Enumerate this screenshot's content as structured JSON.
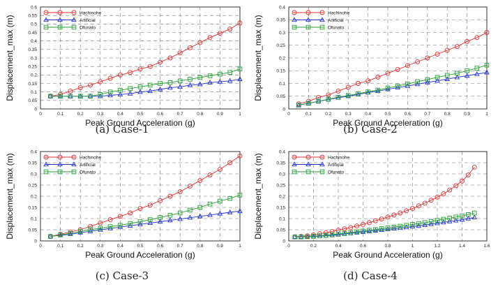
{
  "chart_data": [
    {
      "type": "line",
      "caption": "(a) Case-1",
      "xlabel": "Peak Ground Acceleration (g)",
      "ylabel": "Displacement_max (m)",
      "xlim": [
        0,
        1
      ],
      "ylim": [
        0,
        0.6
      ],
      "xticks": [
        0,
        0.1,
        0.2,
        0.3,
        0.4,
        0.5,
        0.6,
        0.7,
        0.8,
        0.9,
        1
      ],
      "yticks": [
        0,
        0.05,
        0.1,
        0.15,
        0.2,
        0.25,
        0.3,
        0.35,
        0.4,
        0.45,
        0.5,
        0.55,
        0.6
      ],
      "xtick_labels": [
        "0",
        "0.1",
        "0.2",
        "0.3",
        "0.4",
        "0.5",
        "0.6",
        "0.7",
        "0.8",
        "0.9",
        "1"
      ],
      "ytick_labels": [
        "0",
        "0.05",
        "0.1",
        "0.15",
        "0.2",
        "0.25",
        "0.3",
        "0.35",
        "0.4",
        "0.45",
        "0.5",
        "0.55",
        "0.6"
      ],
      "grid": "dashed",
      "legend": "top-left",
      "x": [
        0.05,
        0.1,
        0.15,
        0.2,
        0.25,
        0.3,
        0.35,
        0.4,
        0.45,
        0.5,
        0.55,
        0.6,
        0.65,
        0.7,
        0.75,
        0.8,
        0.85,
        0.9,
        0.95,
        1.0
      ],
      "series": [
        {
          "name": "Hachinohe",
          "marker": "circle",
          "color": "#e03030",
          "values": [
            0.075,
            0.085,
            0.105,
            0.125,
            0.14,
            0.16,
            0.18,
            0.2,
            0.215,
            0.235,
            0.25,
            0.275,
            0.3,
            0.33,
            0.36,
            0.39,
            0.42,
            0.445,
            0.47,
            0.505
          ]
        },
        {
          "name": "Artificial",
          "marker": "triangle",
          "color": "#2030d0",
          "values": [
            0.075,
            0.075,
            0.075,
            0.075,
            0.075,
            0.075,
            0.08,
            0.085,
            0.09,
            0.1,
            0.105,
            0.115,
            0.125,
            0.13,
            0.14,
            0.145,
            0.155,
            0.16,
            0.165,
            0.175
          ]
        },
        {
          "name": "Ofunato",
          "marker": "square",
          "color": "#20a030",
          "values": [
            0.075,
            0.075,
            0.075,
            0.075,
            0.075,
            0.085,
            0.1,
            0.11,
            0.12,
            0.13,
            0.14,
            0.15,
            0.155,
            0.165,
            0.175,
            0.185,
            0.195,
            0.205,
            0.215,
            0.235
          ]
        }
      ]
    },
    {
      "type": "line",
      "caption": "(b) Case-2",
      "xlabel": "Peak Ground Acceleration (g)",
      "ylabel": "Displacement_max (m)",
      "xlim": [
        0,
        1
      ],
      "ylim": [
        0,
        0.4
      ],
      "xticks": [
        0,
        0.1,
        0.2,
        0.3,
        0.4,
        0.5,
        0.6,
        0.7,
        0.8,
        0.9,
        1
      ],
      "yticks": [
        0,
        0.05,
        0.1,
        0.15,
        0.2,
        0.25,
        0.3,
        0.35,
        0.4
      ],
      "xtick_labels": [
        "0",
        "0.1",
        "0.2",
        "0.3",
        "0.4",
        "0.5",
        "0.6",
        "0.7",
        "0.8",
        "0.9",
        "1"
      ],
      "ytick_labels": [
        "0",
        "0.05",
        "0.1",
        "0.15",
        "0.2",
        "0.25",
        "0.3",
        "0.35",
        "0.4"
      ],
      "grid": "dashed",
      "legend": "top-left",
      "x": [
        0.05,
        0.1,
        0.15,
        0.2,
        0.25,
        0.3,
        0.35,
        0.4,
        0.45,
        0.5,
        0.55,
        0.6,
        0.65,
        0.7,
        0.75,
        0.8,
        0.85,
        0.9,
        0.95,
        1.0
      ],
      "series": [
        {
          "name": "Hachinohe",
          "marker": "circle",
          "color": "#e03030",
          "values": [
            0.02,
            0.03,
            0.045,
            0.055,
            0.07,
            0.085,
            0.1,
            0.11,
            0.125,
            0.14,
            0.155,
            0.17,
            0.185,
            0.2,
            0.215,
            0.23,
            0.245,
            0.265,
            0.28,
            0.3
          ]
        },
        {
          "name": "Artificial",
          "marker": "triangle",
          "color": "#2030d0",
          "values": [
            0.015,
            0.022,
            0.03,
            0.037,
            0.044,
            0.05,
            0.057,
            0.064,
            0.07,
            0.077,
            0.084,
            0.09,
            0.097,
            0.104,
            0.11,
            0.117,
            0.124,
            0.13,
            0.137,
            0.143
          ]
        },
        {
          "name": "Ofunato",
          "marker": "square",
          "color": "#20a030",
          "values": [
            0.015,
            0.022,
            0.03,
            0.038,
            0.046,
            0.053,
            0.06,
            0.067,
            0.074,
            0.082,
            0.09,
            0.098,
            0.107,
            0.115,
            0.124,
            0.132,
            0.14,
            0.15,
            0.16,
            0.172
          ]
        }
      ]
    },
    {
      "type": "line",
      "caption": "(c) Case-3",
      "xlabel": "Peak Ground Acceleration (g)",
      "ylabel": "Displacement_max (m)",
      "xlim": [
        0,
        1
      ],
      "ylim": [
        0,
        0.4
      ],
      "xticks": [
        0,
        0.1,
        0.2,
        0.3,
        0.4,
        0.5,
        0.6,
        0.7,
        0.8,
        0.9,
        1
      ],
      "yticks": [
        0,
        0.05,
        0.1,
        0.15,
        0.2,
        0.25,
        0.3,
        0.35,
        0.4
      ],
      "xtick_labels": [
        "0",
        "0.1",
        "0.2",
        "0.3",
        "0.4",
        "0.5",
        "0.6",
        "0.7",
        "0.8",
        "0.9",
        "1"
      ],
      "ytick_labels": [
        "0",
        "0.05",
        "0.1",
        "0.15",
        "0.2",
        "0.25",
        "0.3",
        "0.35",
        "0.4"
      ],
      "grid": "dashed",
      "legend": "top-left",
      "x": [
        0.05,
        0.1,
        0.15,
        0.2,
        0.25,
        0.3,
        0.35,
        0.4,
        0.45,
        0.5,
        0.55,
        0.6,
        0.65,
        0.7,
        0.75,
        0.8,
        0.85,
        0.9,
        0.95,
        1.0
      ],
      "series": [
        {
          "name": "Hachinohe",
          "marker": "circle",
          "color": "#e03030",
          "values": [
            0.02,
            0.03,
            0.04,
            0.05,
            0.065,
            0.08,
            0.095,
            0.11,
            0.125,
            0.145,
            0.16,
            0.18,
            0.2,
            0.22,
            0.245,
            0.27,
            0.295,
            0.32,
            0.35,
            0.38
          ]
        },
        {
          "name": "Artificial",
          "marker": "triangle",
          "color": "#2030d0",
          "values": [
            0.02,
            0.025,
            0.03,
            0.037,
            0.043,
            0.05,
            0.056,
            0.062,
            0.068,
            0.074,
            0.08,
            0.086,
            0.092,
            0.098,
            0.104,
            0.11,
            0.116,
            0.122,
            0.128,
            0.133
          ]
        },
        {
          "name": "Ofunato",
          "marker": "square",
          "color": "#20a030",
          "values": [
            0.02,
            0.027,
            0.034,
            0.042,
            0.05,
            0.057,
            0.064,
            0.07,
            0.078,
            0.086,
            0.095,
            0.105,
            0.115,
            0.125,
            0.138,
            0.15,
            0.165,
            0.178,
            0.19,
            0.205
          ]
        }
      ]
    },
    {
      "type": "line",
      "caption": "(d) Case-4",
      "xlabel": "Peak Ground Acceleration (g)",
      "ylabel": "Displacement_max (m)",
      "xlim": [
        0,
        1.6
      ],
      "ylim": [
        0,
        0.4
      ],
      "xticks": [
        0,
        0.2,
        0.4,
        0.6,
        0.8,
        1,
        1.2,
        1.4,
        1.6
      ],
      "yticks": [
        0,
        0.05,
        0.1,
        0.15,
        0.2,
        0.25,
        0.3,
        0.35,
        0.4
      ],
      "xtick_labels": [
        "0",
        "0.2",
        "0.4",
        "0.6",
        "0.8",
        "1",
        "1.2",
        "1.4",
        "1.6"
      ],
      "ytick_labels": [
        "0",
        "0.05",
        "0.1",
        "0.15",
        "0.2",
        "0.25",
        "0.3",
        "0.35",
        "0.4"
      ],
      "grid": "dashed",
      "legend": "top-left",
      "x": [
        0.05,
        0.1,
        0.15,
        0.2,
        0.25,
        0.3,
        0.35,
        0.4,
        0.45,
        0.5,
        0.55,
        0.6,
        0.65,
        0.7,
        0.75,
        0.8,
        0.85,
        0.9,
        0.95,
        1.0,
        1.05,
        1.1,
        1.15,
        1.2,
        1.25,
        1.3,
        1.35,
        1.4,
        1.45,
        1.5
      ],
      "series": [
        {
          "name": "Hachinohe",
          "marker": "circle",
          "color": "#e03030",
          "values": [
            0.018,
            0.02,
            0.023,
            0.027,
            0.032,
            0.037,
            0.042,
            0.048,
            0.054,
            0.06,
            0.067,
            0.074,
            0.082,
            0.09,
            0.098,
            0.107,
            0.116,
            0.125,
            0.135,
            0.145,
            0.157,
            0.169,
            0.182,
            0.196,
            0.211,
            0.228,
            0.247,
            0.268,
            0.295,
            0.33
          ]
        },
        {
          "name": "Artificial",
          "marker": "triangle",
          "color": "#2030d0",
          "values": [
            0.018,
            0.018,
            0.018,
            0.019,
            0.021,
            0.023,
            0.025,
            0.028,
            0.031,
            0.034,
            0.037,
            0.04,
            0.043,
            0.046,
            0.049,
            0.052,
            0.055,
            0.058,
            0.061,
            0.064,
            0.067,
            0.071,
            0.075,
            0.079,
            0.083,
            0.087,
            0.091,
            0.095,
            0.1,
            0.105
          ]
        },
        {
          "name": "Ofunato",
          "marker": "square",
          "color": "#20a030",
          "values": [
            0.018,
            0.018,
            0.019,
            0.021,
            0.023,
            0.025,
            0.028,
            0.031,
            0.034,
            0.037,
            0.041,
            0.044,
            0.048,
            0.051,
            0.055,
            0.058,
            0.062,
            0.066,
            0.07,
            0.074,
            0.078,
            0.082,
            0.087,
            0.092,
            0.097,
            0.102,
            0.107,
            0.112,
            0.118,
            0.125
          ]
        }
      ]
    }
  ]
}
